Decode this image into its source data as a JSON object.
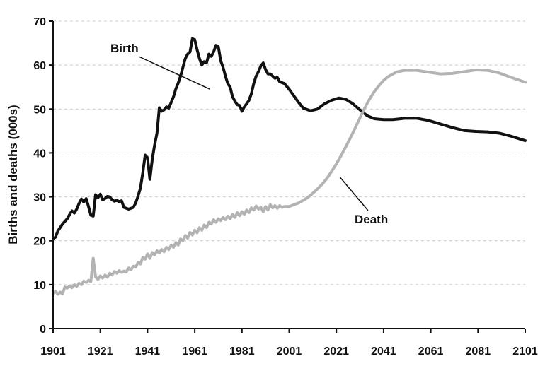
{
  "chart_data": {
    "type": "line",
    "title": "",
    "xlabel": "",
    "ylabel": "Births and deaths (000s)",
    "xlim": [
      1901,
      2101
    ],
    "ylim": [
      0,
      70
    ],
    "x_ticks": [
      1901,
      1921,
      1941,
      1961,
      1981,
      2001,
      2021,
      2041,
      2061,
      2081,
      2101
    ],
    "x_tick_labels": [
      "1901",
      "1921",
      "1941",
      "1961",
      "1981",
      "2001",
      "2021",
      "2041",
      "2061",
      "2081",
      "2101"
    ],
    "y_ticks": [
      0,
      10,
      20,
      30,
      40,
      50,
      60,
      70
    ],
    "y_tick_labels": [
      "0",
      "10",
      "20",
      "30",
      "40",
      "50",
      "60",
      "70"
    ],
    "grid": "horizontal-dashed",
    "legend": "none",
    "series": [
      {
        "name": "Birth",
        "color": "#111111",
        "points": [
          [
            1901,
            20.5
          ],
          [
            1902,
            20.8
          ],
          [
            1903,
            22.2
          ],
          [
            1905,
            23.8
          ],
          [
            1907,
            25.0
          ],
          [
            1908,
            26.0
          ],
          [
            1909,
            26.8
          ],
          [
            1910,
            26.3
          ],
          [
            1911,
            27.2
          ],
          [
            1912,
            28.5
          ],
          [
            1913,
            29.5
          ],
          [
            1914,
            28.8
          ],
          [
            1915,
            29.6
          ],
          [
            1916,
            27.8
          ],
          [
            1917,
            25.8
          ],
          [
            1918,
            25.6
          ],
          [
            1919,
            30.5
          ],
          [
            1920,
            29.8
          ],
          [
            1921,
            30.6
          ],
          [
            1922,
            29.3
          ],
          [
            1923,
            29.6
          ],
          [
            1924,
            30.1
          ],
          [
            1925,
            30.0
          ],
          [
            1926,
            29.3
          ],
          [
            1927,
            29.0
          ],
          [
            1928,
            29.2
          ],
          [
            1929,
            28.9
          ],
          [
            1930,
            29.1
          ],
          [
            1931,
            27.6
          ],
          [
            1933,
            27.2
          ],
          [
            1935,
            27.6
          ],
          [
            1936,
            28.6
          ],
          [
            1937,
            30.2
          ],
          [
            1938,
            32.0
          ],
          [
            1939,
            35.5
          ],
          [
            1940,
            39.5
          ],
          [
            1941,
            38.9
          ],
          [
            1942,
            34.0
          ],
          [
            1943,
            38.5
          ],
          [
            1944,
            41.8
          ],
          [
            1945,
            44.5
          ],
          [
            1946,
            50.3
          ],
          [
            1947,
            49.5
          ],
          [
            1948,
            49.8
          ],
          [
            1949,
            50.5
          ],
          [
            1950,
            50.2
          ],
          [
            1951,
            51.5
          ],
          [
            1952,
            52.8
          ],
          [
            1953,
            54.6
          ],
          [
            1954,
            55.9
          ],
          [
            1955,
            57.5
          ],
          [
            1956,
            59.5
          ],
          [
            1957,
            61.5
          ],
          [
            1958,
            62.5
          ],
          [
            1959,
            63.0
          ],
          [
            1960,
            66.0
          ],
          [
            1961,
            65.8
          ],
          [
            1962,
            63.5
          ],
          [
            1963,
            61.5
          ],
          [
            1964,
            60.0
          ],
          [
            1965,
            60.8
          ],
          [
            1966,
            60.5
          ],
          [
            1967,
            62.5
          ],
          [
            1968,
            62.0
          ],
          [
            1969,
            63.0
          ],
          [
            1970,
            64.5
          ],
          [
            1971,
            64.2
          ],
          [
            1972,
            61.0
          ],
          [
            1973,
            59.5
          ],
          [
            1974,
            57.5
          ],
          [
            1975,
            55.8
          ],
          [
            1976,
            55.0
          ],
          [
            1977,
            52.8
          ],
          [
            1978,
            51.8
          ],
          [
            1979,
            51.0
          ],
          [
            1980,
            50.8
          ],
          [
            1981,
            49.5
          ],
          [
            1982,
            50.5
          ],
          [
            1983,
            51.2
          ],
          [
            1984,
            52.0
          ],
          [
            1985,
            53.5
          ],
          [
            1986,
            55.8
          ],
          [
            1987,
            57.5
          ],
          [
            1988,
            58.5
          ],
          [
            1989,
            59.8
          ],
          [
            1990,
            60.5
          ],
          [
            1991,
            59.0
          ],
          [
            1992,
            58.0
          ],
          [
            1993,
            58.0
          ],
          [
            1994,
            57.5
          ],
          [
            1995,
            57.0
          ],
          [
            1996,
            57.2
          ],
          [
            1997,
            56.2
          ],
          [
            1998,
            56.0
          ],
          [
            1999,
            55.8
          ],
          [
            2001,
            54.5
          ],
          [
            2003,
            53.0
          ],
          [
            2005,
            51.5
          ],
          [
            2007,
            50.2
          ],
          [
            2010,
            49.6
          ],
          [
            2013,
            50.0
          ],
          [
            2016,
            51.2
          ],
          [
            2019,
            52.0
          ],
          [
            2022,
            52.5
          ],
          [
            2025,
            52.2
          ],
          [
            2028,
            51.2
          ],
          [
            2031,
            49.8
          ],
          [
            2034,
            48.5
          ],
          [
            2037,
            47.8
          ],
          [
            2041,
            47.6
          ],
          [
            2045,
            47.6
          ],
          [
            2050,
            47.9
          ],
          [
            2055,
            47.9
          ],
          [
            2060,
            47.4
          ],
          [
            2065,
            46.6
          ],
          [
            2070,
            45.8
          ],
          [
            2075,
            45.1
          ],
          [
            2080,
            44.9
          ],
          [
            2085,
            44.8
          ],
          [
            2090,
            44.5
          ],
          [
            2095,
            43.8
          ],
          [
            2101,
            42.8
          ]
        ]
      },
      {
        "name": "Death",
        "color": "#b3b3b3",
        "points": [
          [
            1901,
            8.0
          ],
          [
            1902,
            8.5
          ],
          [
            1903,
            7.8
          ],
          [
            1904,
            8.3
          ],
          [
            1905,
            7.9
          ],
          [
            1906,
            9.5
          ],
          [
            1907,
            9.2
          ],
          [
            1908,
            9.7
          ],
          [
            1909,
            9.3
          ],
          [
            1910,
            10.0
          ],
          [
            1911,
            9.6
          ],
          [
            1912,
            10.3
          ],
          [
            1913,
            10.0
          ],
          [
            1914,
            10.8
          ],
          [
            1915,
            10.5
          ],
          [
            1916,
            11.0
          ],
          [
            1917,
            10.7
          ],
          [
            1918,
            16.0
          ],
          [
            1919,
            11.8
          ],
          [
            1920,
            11.2
          ],
          [
            1921,
            12.0
          ],
          [
            1922,
            11.5
          ],
          [
            1923,
            12.2
          ],
          [
            1924,
            11.7
          ],
          [
            1925,
            12.6
          ],
          [
            1926,
            12.2
          ],
          [
            1927,
            13.0
          ],
          [
            1928,
            12.6
          ],
          [
            1929,
            13.2
          ],
          [
            1930,
            12.8
          ],
          [
            1931,
            13.1
          ],
          [
            1932,
            12.9
          ],
          [
            1933,
            13.8
          ],
          [
            1934,
            13.4
          ],
          [
            1935,
            14.2
          ],
          [
            1936,
            14.0
          ],
          [
            1937,
            15.1
          ],
          [
            1938,
            14.7
          ],
          [
            1939,
            16.2
          ],
          [
            1940,
            15.8
          ],
          [
            1941,
            17.0
          ],
          [
            1942,
            16.0
          ],
          [
            1943,
            17.3
          ],
          [
            1944,
            16.8
          ],
          [
            1945,
            17.7
          ],
          [
            1946,
            17.2
          ],
          [
            1947,
            18.0
          ],
          [
            1948,
            17.5
          ],
          [
            1949,
            18.5
          ],
          [
            1950,
            18.0
          ],
          [
            1951,
            19.0
          ],
          [
            1952,
            18.5
          ],
          [
            1953,
            19.6
          ],
          [
            1954,
            19.0
          ],
          [
            1955,
            20.4
          ],
          [
            1956,
            20.0
          ],
          [
            1957,
            21.2
          ],
          [
            1958,
            20.6
          ],
          [
            1959,
            21.9
          ],
          [
            1960,
            21.3
          ],
          [
            1961,
            22.4
          ],
          [
            1962,
            21.8
          ],
          [
            1963,
            23.0
          ],
          [
            1964,
            22.4
          ],
          [
            1965,
            23.6
          ],
          [
            1966,
            23.0
          ],
          [
            1967,
            24.2
          ],
          [
            1968,
            23.8
          ],
          [
            1969,
            24.8
          ],
          [
            1970,
            24.2
          ],
          [
            1971,
            25.0
          ],
          [
            1972,
            24.6
          ],
          [
            1973,
            25.3
          ],
          [
            1974,
            24.8
          ],
          [
            1975,
            25.6
          ],
          [
            1976,
            25.0
          ],
          [
            1977,
            26.0
          ],
          [
            1978,
            25.3
          ],
          [
            1979,
            26.4
          ],
          [
            1980,
            25.7
          ],
          [
            1981,
            26.6
          ],
          [
            1982,
            26.0
          ],
          [
            1983,
            27.0
          ],
          [
            1984,
            26.4
          ],
          [
            1985,
            27.5
          ],
          [
            1986,
            27.0
          ],
          [
            1987,
            27.9
          ],
          [
            1988,
            27.2
          ],
          [
            1989,
            27.6
          ],
          [
            1990,
            26.6
          ],
          [
            1991,
            27.8
          ],
          [
            1992,
            27.0
          ],
          [
            1993,
            28.2
          ],
          [
            1994,
            27.5
          ],
          [
            1995,
            28.0
          ],
          [
            1996,
            27.4
          ],
          [
            1997,
            28.0
          ],
          [
            1998,
            27.6
          ],
          [
            1999,
            27.8
          ],
          [
            2001,
            27.8
          ],
          [
            2003,
            28.2
          ],
          [
            2005,
            28.6
          ],
          [
            2007,
            29.2
          ],
          [
            2009,
            29.9
          ],
          [
            2011,
            30.8
          ],
          [
            2013,
            31.8
          ],
          [
            2015,
            32.9
          ],
          [
            2017,
            34.2
          ],
          [
            2019,
            35.8
          ],
          [
            2021,
            37.5
          ],
          [
            2023,
            39.4
          ],
          [
            2025,
            41.4
          ],
          [
            2027,
            43.5
          ],
          [
            2029,
            45.7
          ],
          [
            2031,
            48.0
          ],
          [
            2033,
            50.2
          ],
          [
            2035,
            52.2
          ],
          [
            2037,
            53.9
          ],
          [
            2039,
            55.3
          ],
          [
            2041,
            56.5
          ],
          [
            2043,
            57.4
          ],
          [
            2045,
            58.0
          ],
          [
            2047,
            58.5
          ],
          [
            2050,
            58.8
          ],
          [
            2055,
            58.8
          ],
          [
            2060,
            58.4
          ],
          [
            2065,
            58.0
          ],
          [
            2070,
            58.1
          ],
          [
            2075,
            58.5
          ],
          [
            2080,
            58.9
          ],
          [
            2085,
            58.8
          ],
          [
            2090,
            58.2
          ],
          [
            2095,
            57.2
          ],
          [
            2101,
            56.1
          ]
        ]
      }
    ],
    "annotations": [
      {
        "text": "Birth",
        "series": "Birth",
        "anchor_x": 1967.5,
        "anchor_y": 54.5,
        "label_anchor": "upper-left of the line"
      },
      {
        "text": "Death",
        "series": "Death",
        "anchor_x": 2022.5,
        "anchor_y": 34.5,
        "label_anchor": "lower-right of the line"
      }
    ]
  },
  "colors": {
    "background": "#ffffff",
    "axis": "#111111",
    "grid": "#c8c8c8"
  }
}
